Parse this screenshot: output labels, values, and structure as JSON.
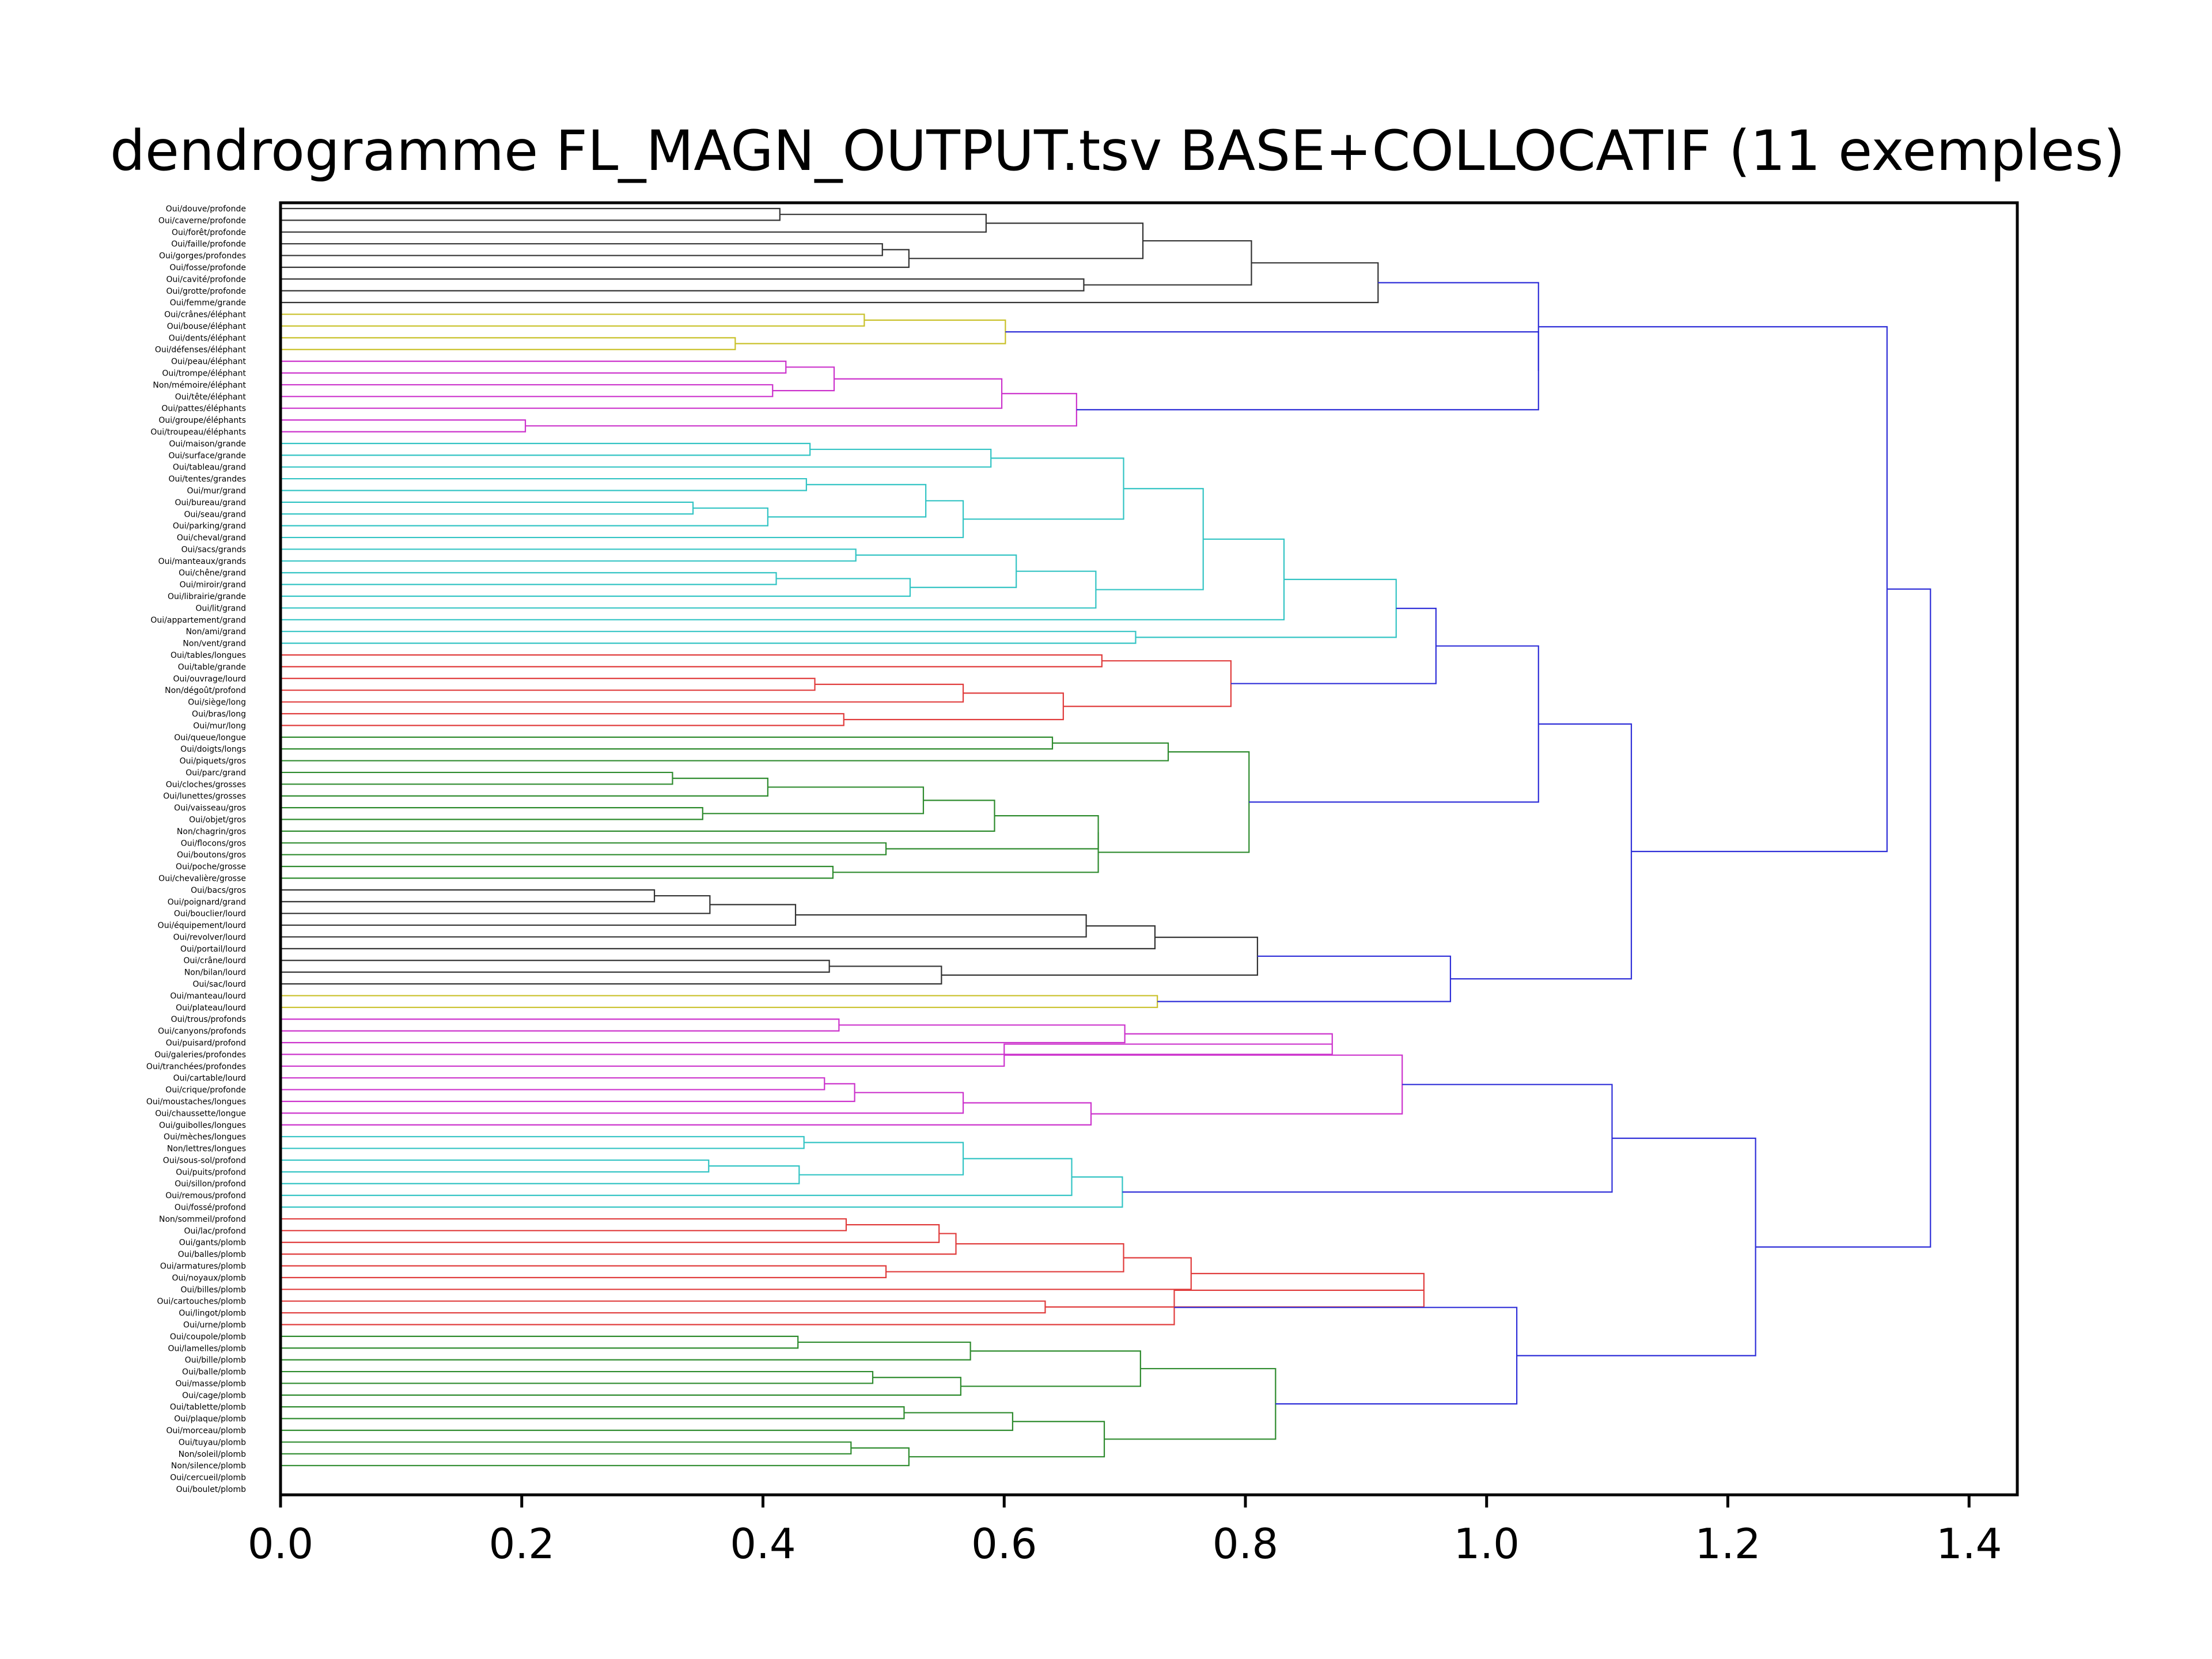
{
  "chart_data": {
    "type": "dendrogram",
    "orientation": "horizontal",
    "title": "dendrogramme FL_MAGN_OUTPUT.tsv BASE+COLLOCATIF (11 exemples)",
    "xlim": [
      0,
      1.44
    ],
    "xticks": [
      "0.0",
      "0.2",
      "0.4",
      "0.6",
      "0.8",
      "1.0",
      "1.2",
      "1.4"
    ],
    "xtick_values": [
      0,
      0.2,
      0.4,
      0.6,
      0.8,
      1.0,
      1.2,
      1.4
    ],
    "colors": {
      "black": "#333333",
      "yellow": "#c9c12a",
      "magenta": "#cc33cc",
      "cyan": "#33c4c4",
      "red": "#e03c3c",
      "green": "#2e8b2e",
      "blue": "#2f2fd8"
    },
    "leaves": [
      "Oui/douve/profonde",
      "Oui/caverne/profonde",
      "Oui/forêt/profonde",
      "Oui/faille/profonde",
      "Oui/gorges/profondes",
      "Oui/fosse/profonde",
      "Oui/cavité/profonde",
      "Oui/grotte/profonde",
      "Oui/femme/grande",
      "Oui/crânes/éléphant",
      "Oui/bouse/éléphant",
      "Oui/dents/éléphant",
      "Oui/défenses/éléphant",
      "Oui/peau/éléphant",
      "Oui/trompe/éléphant",
      "Non/mémoire/éléphant",
      "Oui/tête/éléphant",
      "Oui/pattes/éléphants",
      "Oui/groupe/éléphants",
      "Oui/troupeau/éléphants",
      "Oui/maison/grande",
      "Oui/surface/grande",
      "Oui/tableau/grand",
      "Oui/tentes/grandes",
      "Oui/mur/grand",
      "Oui/bureau/grand",
      "Oui/seau/grand",
      "Oui/parking/grand",
      "Oui/cheval/grand",
      "Oui/sacs/grands",
      "Oui/manteaux/grands",
      "Oui/chêne/grand",
      "Oui/miroir/grand",
      "Oui/librairie/grande",
      "Oui/lit/grand",
      "Oui/appartement/grand",
      "Non/ami/grand",
      "Non/vent/grand",
      "Oui/tables/longues",
      "Oui/table/grande",
      "Oui/ouvrage/lourd",
      "Non/dégoût/profond",
      "Oui/siège/long",
      "Oui/bras/long",
      "Oui/mur/long",
      "Oui/queue/longue",
      "Oui/doigts/longs",
      "Oui/piquets/gros",
      "Oui/parc/grand",
      "Oui/cloches/grosses",
      "Oui/lunettes/grosses",
      "Oui/vaisseau/gros",
      "Oui/objet/gros",
      "Non/chagrin/gros",
      "Oui/flocons/gros",
      "Oui/boutons/gros",
      "Oui/poche/grosse",
      "Oui/chevalière/grosse",
      "Oui/bacs/gros",
      "Oui/poignard/grand",
      "Oui/bouclier/lourd",
      "Oui/équipement/lourd",
      "Oui/revolver/lourd",
      "Oui/portail/lourd",
      "Oui/crâne/lourd",
      "Non/bilan/lourd",
      "Oui/sac/lourd",
      "Oui/manteau/lourd",
      "Oui/plateau/lourd",
      "Oui/trous/profonds",
      "Oui/canyons/profonds",
      "Oui/puisard/profond",
      "Oui/galeries/profondes",
      "Oui/tranchées/profondes",
      "Oui/cartable/lourd",
      "Oui/crique/profonde",
      "Oui/moustaches/longues",
      "Oui/chaussette/longue",
      "Oui/guibolles/longues",
      "Oui/mèches/longues",
      "Non/lettres/longues",
      "Oui/sous-sol/profond",
      "Oui/puits/profond",
      "Oui/sillon/profond",
      "Oui/remous/profond",
      "Oui/fossé/profond",
      "Non/sommeil/profond",
      "Oui/lac/profond",
      "Oui/gants/plomb",
      "Oui/balles/plomb",
      "Oui/armatures/plomb",
      "Oui/noyaux/plomb",
      "Oui/billes/plomb",
      "Oui/cartouches/plomb",
      "Oui/lingot/plomb",
      "Oui/urne/plomb",
      "Oui/coupole/plomb",
      "Oui/lamelles/plomb",
      "Oui/bille/plomb",
      "Oui/balle/plomb",
      "Oui/masse/plomb",
      "Oui/cage/plomb",
      "Oui/tablette/plomb",
      "Oui/plaque/plomb",
      "Oui/morceau/plomb",
      "Oui/tuyau/plomb",
      "Non/soleil/plomb",
      "Non/silence/plomb",
      "Oui/cercueil/plomb",
      "Oui/boulet/plomb"
    ],
    "merges": [
      [
        "L0",
        "L1",
        0.414,
        "black",
        "b1"
      ],
      [
        "b1",
        "L2",
        0.585,
        "black",
        "b2"
      ],
      [
        "L3",
        "L4",
        0.499,
        "black",
        "b3"
      ],
      [
        "b3",
        "L5",
        0.521,
        "black",
        "b4"
      ],
      [
        "b2",
        "b4",
        0.715,
        "black",
        "b5"
      ],
      [
        "L6",
        "L7",
        0.666,
        "black",
        "b6"
      ],
      [
        "b5",
        "b6",
        0.805,
        "black",
        "b7"
      ],
      [
        "b7",
        "L8",
        0.91,
        "black",
        "b8"
      ],
      [
        "L9",
        "L10",
        0.484,
        "yellow",
        "y1"
      ],
      [
        "L11",
        "L12",
        0.377,
        "yellow",
        "y2"
      ],
      [
        "y1",
        "y2",
        0.601,
        "yellow",
        "y3"
      ],
      [
        "L13",
        "L14",
        0.419,
        "magenta",
        "m1"
      ],
      [
        "L15",
        "L16",
        0.408,
        "magenta",
        "m2"
      ],
      [
        "m1",
        "m2",
        0.459,
        "magenta",
        "m3"
      ],
      [
        "m3",
        "L17",
        0.598,
        "magenta",
        "m4"
      ],
      [
        "L18",
        "L19",
        0.203,
        "magenta",
        "m5"
      ],
      [
        "m4",
        "m5",
        0.66,
        "magenta",
        "m6"
      ],
      [
        "y3",
        "m6",
        1.043,
        "blue",
        "U1"
      ],
      [
        "b8",
        "U1",
        1.043,
        "blue",
        "U2"
      ],
      [
        "L20",
        "L21",
        0.439,
        "cyan",
        "c1"
      ],
      [
        "c1",
        "L22",
        0.589,
        "cyan",
        "c2"
      ],
      [
        "L23",
        "L24",
        0.436,
        "cyan",
        "c3"
      ],
      [
        "L25",
        "L26",
        0.342,
        "cyan",
        "c4"
      ],
      [
        "c4",
        "L27",
        0.404,
        "cyan",
        "c5"
      ],
      [
        "c3",
        "c5",
        0.535,
        "cyan",
        "c6"
      ],
      [
        "c6",
        "L28",
        0.566,
        "cyan",
        "c7"
      ],
      [
        "c2",
        "c7",
        0.699,
        "cyan",
        "c8"
      ],
      [
        "L29",
        "L30",
        0.477,
        "cyan",
        "c9"
      ],
      [
        "L31",
        "L32",
        0.411,
        "cyan",
        "c10"
      ],
      [
        "c10",
        "L33",
        0.522,
        "cyan",
        "c11"
      ],
      [
        "c9",
        "c11",
        0.61,
        "cyan",
        "c12"
      ],
      [
        "c12",
        "L34",
        0.676,
        "cyan",
        "c13"
      ],
      [
        "c8",
        "c13",
        0.765,
        "cyan",
        "c14"
      ],
      [
        "c14",
        "L35",
        0.832,
        "cyan",
        "c15"
      ],
      [
        "L36",
        "L37",
        0.709,
        "cyan",
        "c16"
      ],
      [
        "c15",
        "c16",
        0.925,
        "cyan",
        "c17"
      ],
      [
        "L38",
        "L39",
        0.681,
        "red",
        "r1"
      ],
      [
        "L40",
        "L41",
        0.443,
        "red",
        "r2"
      ],
      [
        "r2",
        "L42",
        0.566,
        "red",
        "r3"
      ],
      [
        "L43",
        "L44",
        0.467,
        "red",
        "r4"
      ],
      [
        "r3",
        "r4",
        0.649,
        "red",
        "r5"
      ],
      [
        "r1",
        "r5",
        0.788,
        "red",
        "r6"
      ],
      [
        "c17",
        "r6",
        0.958,
        "blue",
        "U3"
      ],
      [
        "L45",
        "L46",
        0.64,
        "green",
        "g1"
      ],
      [
        "g1",
        "L47",
        0.736,
        "green",
        "g2"
      ],
      [
        "L48",
        "L49",
        0.325,
        "green",
        "g3"
      ],
      [
        "g3",
        "L50",
        0.404,
        "green",
        "g4"
      ],
      [
        "L51",
        "L52",
        0.35,
        "green",
        "g5"
      ],
      [
        "g4",
        "g5",
        0.533,
        "green",
        "g6"
      ],
      [
        "g6",
        "L53",
        0.592,
        "green",
        "g7"
      ],
      [
        "L54",
        "L55",
        0.502,
        "green",
        "g8"
      ],
      [
        "g7",
        "g8",
        0.678,
        "green",
        "g9"
      ],
      [
        "L56",
        "L57",
        0.458,
        "green",
        "g10"
      ],
      [
        "g9",
        "g10",
        0.678,
        "green",
        "g11"
      ],
      [
        "g2",
        "g11",
        0.803,
        "green",
        "g12"
      ],
      [
        "U3",
        "g12",
        1.043,
        "blue",
        "U4"
      ],
      [
        "L58",
        "L59",
        0.31,
        "black",
        "k1"
      ],
      [
        "k1",
        "L60",
        0.356,
        "black",
        "k2"
      ],
      [
        "k2",
        "L61",
        0.427,
        "black",
        "k3"
      ],
      [
        "k3",
        "L62",
        0.668,
        "black",
        "k4"
      ],
      [
        "k4",
        "L63",
        0.725,
        "black",
        "k5"
      ],
      [
        "L64",
        "L65",
        0.455,
        "black",
        "k6"
      ],
      [
        "k6",
        "L66",
        0.548,
        "black",
        "k7"
      ],
      [
        "k5",
        "k7",
        0.81,
        "black",
        "k8"
      ],
      [
        "L67",
        "L68",
        0.727,
        "yellow",
        "y4"
      ],
      [
        "k8",
        "y4",
        0.97,
        "blue",
        "U5"
      ],
      [
        "U4",
        "U5",
        1.12,
        "blue",
        "U6"
      ],
      [
        "U2",
        "U6",
        1.332,
        "blue",
        "U7"
      ],
      [
        "L69",
        "L70",
        0.463,
        "magenta",
        "p1"
      ],
      [
        "p1",
        "L71",
        0.7,
        "magenta",
        "p2"
      ],
      [
        "p2",
        "L72",
        0.872,
        "magenta",
        "p3"
      ],
      [
        "p3",
        "L73",
        0.6,
        "magenta",
        "p4"
      ],
      [
        "L74",
        "L75",
        0.451,
        "magenta",
        "p5"
      ],
      [
        "p5",
        "L76",
        0.476,
        "magenta",
        "p6"
      ],
      [
        "p6",
        "L77",
        0.566,
        "magenta",
        "p7"
      ],
      [
        "p7",
        "L78",
        0.672,
        "magenta",
        "p8"
      ],
      [
        "p4",
        "p8",
        0.93,
        "magenta",
        "p9"
      ],
      [
        "L79",
        "L80",
        0.434,
        "cyan",
        "q1"
      ],
      [
        "L81",
        "L82",
        0.355,
        "cyan",
        "q2"
      ],
      [
        "q2",
        "L83",
        0.43,
        "cyan",
        "q3"
      ],
      [
        "q1",
        "q3",
        0.566,
        "cyan",
        "q4"
      ],
      [
        "q4",
        "L84",
        0.656,
        "cyan",
        "q5"
      ],
      [
        "q5",
        "L85",
        0.698,
        "cyan",
        "q6"
      ],
      [
        "p9",
        "q6",
        1.104,
        "blue",
        "U8"
      ],
      [
        "L86",
        "L87",
        0.469,
        "red",
        "s1"
      ],
      [
        "s1",
        "L88",
        0.546,
        "red",
        "s2"
      ],
      [
        "s2",
        "L89",
        0.56,
        "red",
        "s3"
      ],
      [
        "L90",
        "L91",
        0.502,
        "red",
        "s4"
      ],
      [
        "s3",
        "s4",
        0.699,
        "red",
        "s5"
      ],
      [
        "s5",
        "L92",
        0.755,
        "red",
        "s6"
      ],
      [
        "L93",
        "L94",
        0.634,
        "red",
        "s7"
      ],
      [
        "s6",
        "s7",
        0.948,
        "red",
        "s8"
      ],
      [
        "s8",
        "L95",
        0.741,
        "red",
        "s9"
      ],
      [
        "L96",
        "L97",
        0.429,
        "green",
        "t1"
      ],
      [
        "t1",
        "L98",
        0.572,
        "green",
        "t2"
      ],
      [
        "L99",
        "L100",
        0.491,
        "green",
        "t3"
      ],
      [
        "t3",
        "L101",
        0.564,
        "green",
        "t4"
      ],
      [
        "t2",
        "t4",
        0.713,
        "green",
        "t5"
      ],
      [
        "L102",
        "L103",
        0.517,
        "green",
        "t6"
      ],
      [
        "t6",
        "L104",
        0.607,
        "green",
        "t7"
      ],
      [
        "L105",
        "L106",
        0.473,
        "green",
        "t8"
      ],
      [
        "t8",
        "L107",
        0.521,
        "green",
        "t9"
      ],
      [
        "t7",
        "t9",
        0.683,
        "green",
        "t10"
      ],
      [
        "t5",
        "t10",
        0.825,
        "green",
        "t11"
      ],
      [
        "s9",
        "t11",
        1.025,
        "blue",
        "U9"
      ],
      [
        "U8",
        "U9",
        1.223,
        "blue",
        "U10"
      ],
      [
        "U7",
        "U10",
        1.368,
        "blue",
        "ROOT"
      ]
    ]
  }
}
